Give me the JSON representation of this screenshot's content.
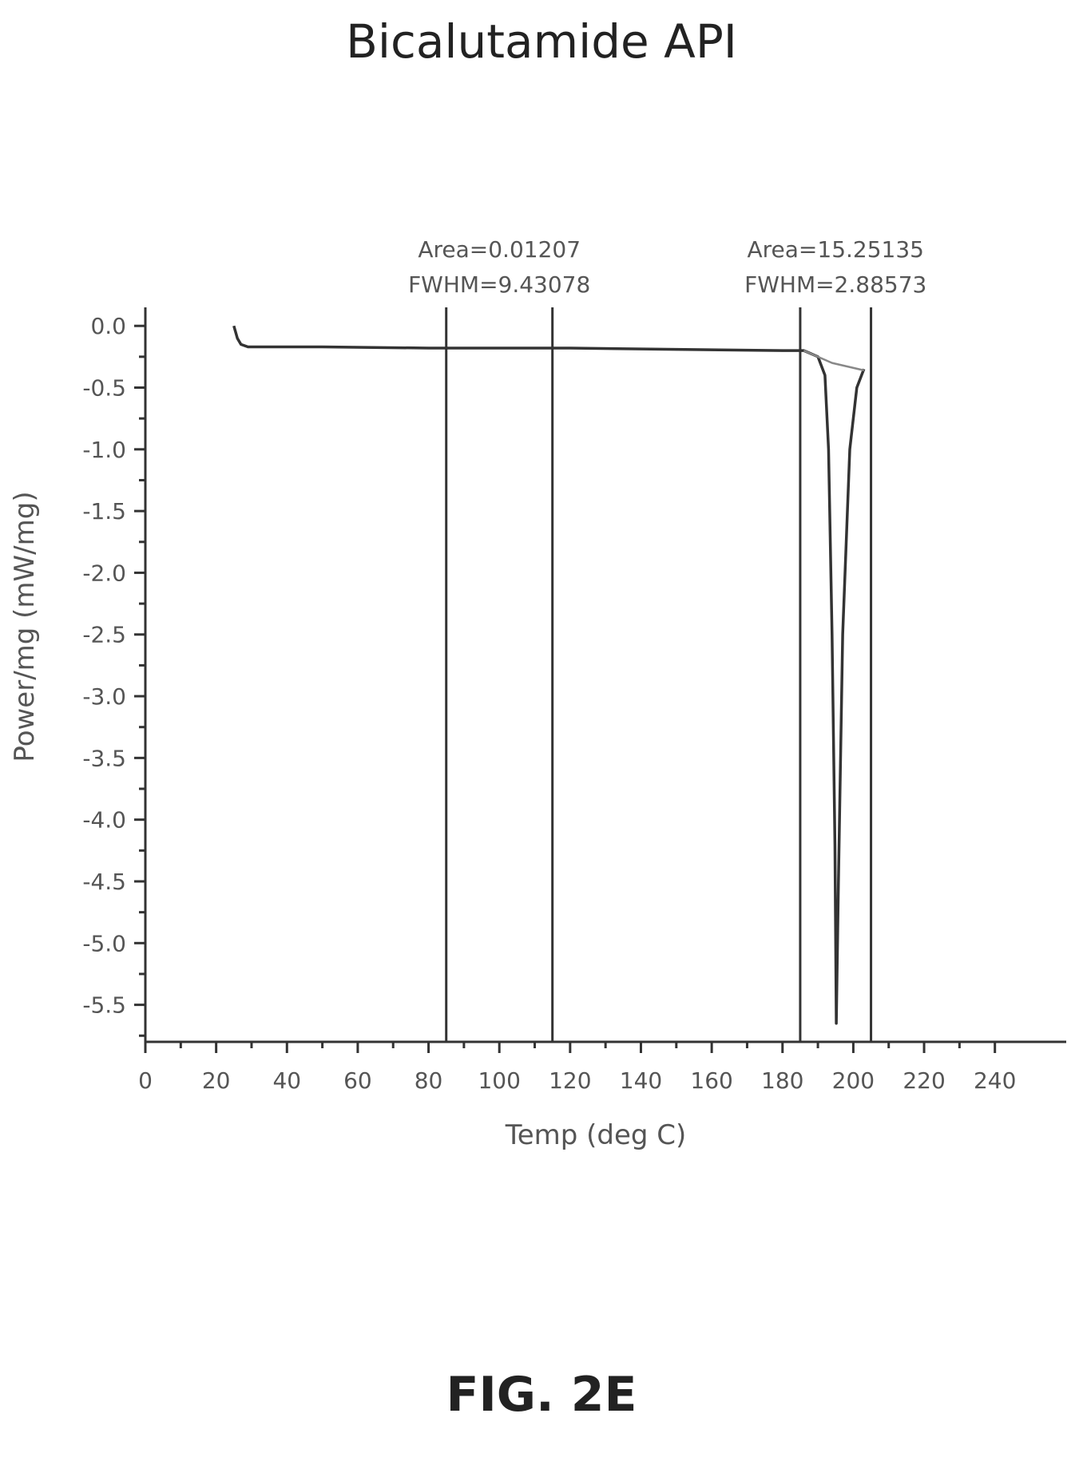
{
  "title": "Bicalutamide API",
  "figure_label": "FIG. 2E",
  "chart_data": {
    "type": "line",
    "title": "Bicalutamide API",
    "xlabel": "Temp (deg C)",
    "ylabel": "Power/mg (mW/mg)",
    "xlim": [
      0,
      250
    ],
    "ylim": [
      -5.8,
      0.15
    ],
    "x_ticks": [
      0,
      20,
      40,
      60,
      80,
      100,
      120,
      140,
      160,
      180,
      200,
      220,
      240
    ],
    "x_tick_labels": [
      "0",
      "20",
      "40",
      "60",
      "80",
      "100",
      "120",
      "140",
      "160",
      "180",
      "200",
      "220",
      "240"
    ],
    "y_ticks": [
      0.0,
      -0.5,
      -1.0,
      -1.5,
      -2.0,
      -2.5,
      -3.0,
      -3.5,
      -4.0,
      -4.5,
      -5.0,
      -5.5
    ],
    "y_tick_labels": [
      "0.0",
      "-0.5",
      "-1.0",
      "-1.5",
      "-2.0",
      "-2.5",
      "-3.0",
      "-3.5",
      "-4.0",
      "-4.5",
      "-5.0",
      "-5.5"
    ],
    "grid": false,
    "series": [
      {
        "x": [
          25,
          26,
          27,
          29,
          35,
          50,
          80,
          120,
          150,
          180,
          186,
          190,
          192,
          193,
          194,
          194.8,
          195.2,
          195.8,
          197,
          199,
          201,
          203
        ],
        "y": [
          0.0,
          -0.1,
          -0.15,
          -0.17,
          -0.17,
          -0.17,
          -0.18,
          -0.18,
          -0.19,
          -0.2,
          -0.2,
          -0.25,
          -0.4,
          -1.0,
          -2.5,
          -4.2,
          -5.65,
          -4.5,
          -2.5,
          -1.0,
          -0.5,
          -0.35
        ]
      },
      {
        "x": [
          186,
          194,
          203
        ],
        "y": [
          -0.2,
          -0.3,
          -0.36
        ]
      }
    ],
    "annotations": [
      {
        "x_start": 85,
        "x_end": 115,
        "line1": "Area=0.01207",
        "line2": "FWHM=9.43078"
      },
      {
        "x_start": 185,
        "x_end": 205,
        "line1": "Area=15.25135",
        "line2": "FWHM=2.88573"
      }
    ]
  }
}
